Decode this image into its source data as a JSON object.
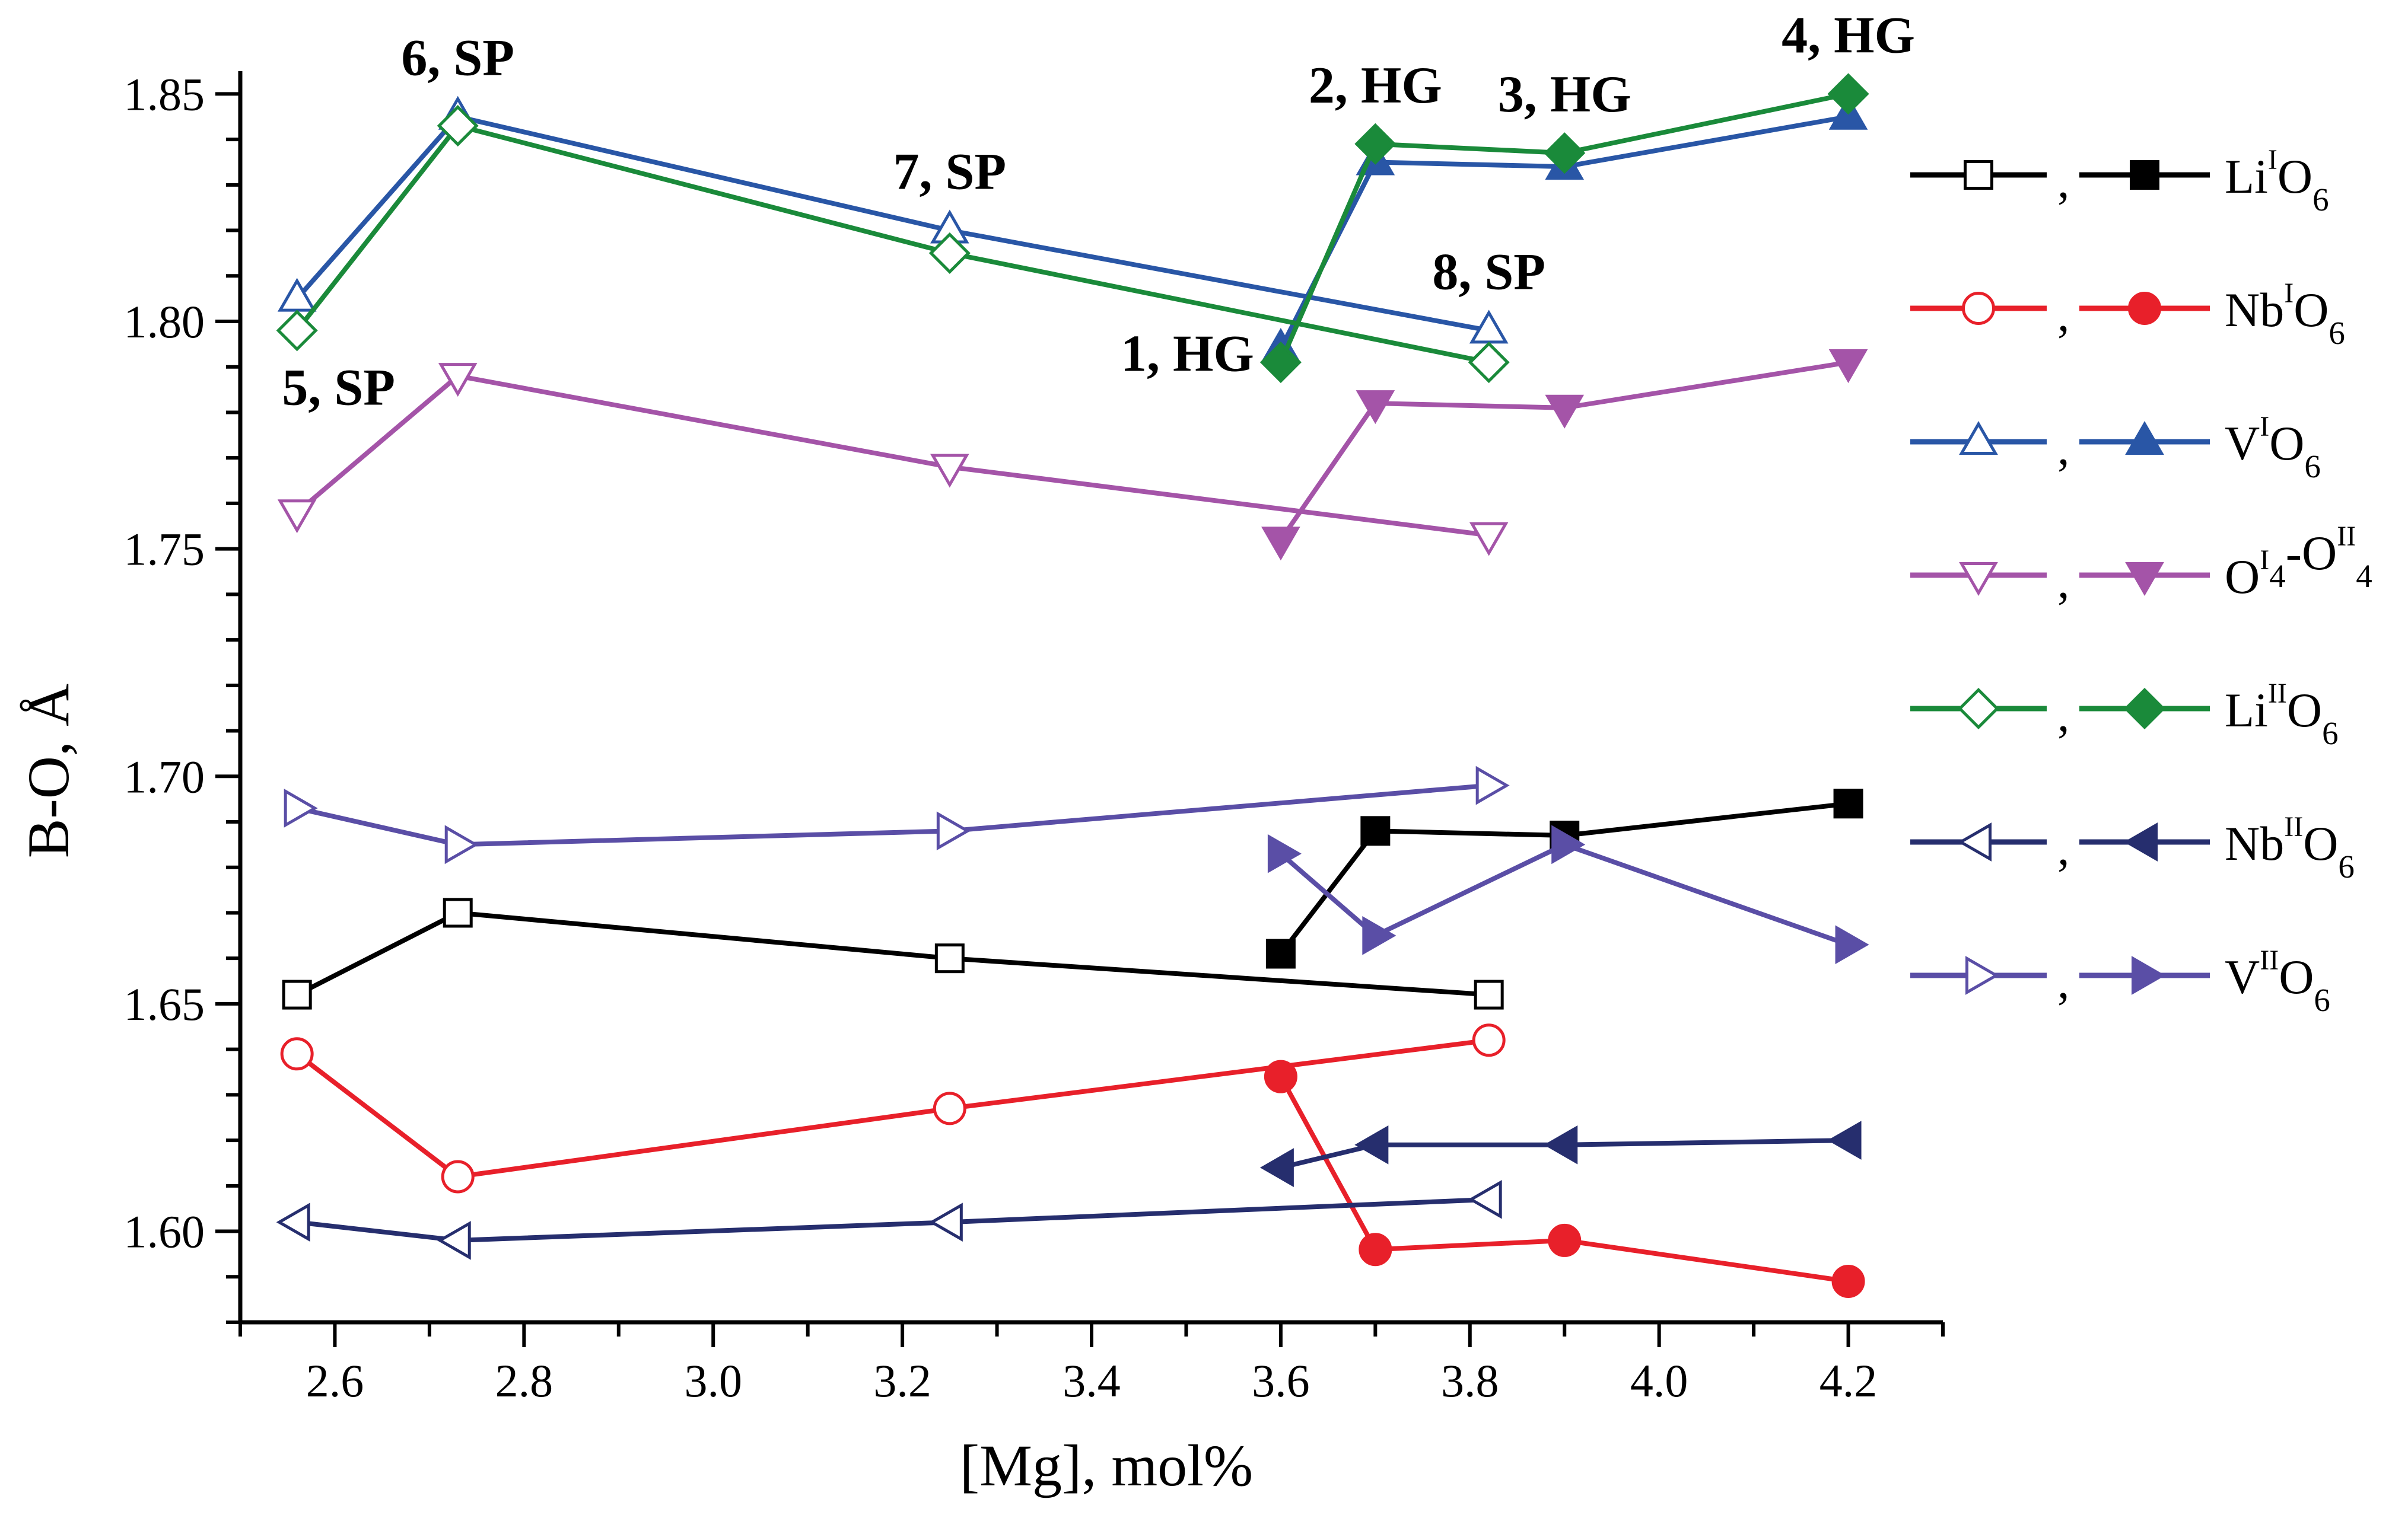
{
  "chart_data": {
    "type": "line",
    "title": "",
    "xlabel": "[Mg], mol%",
    "ylabel": "B-O, Å",
    "xlim": [
      2.5,
      4.3
    ],
    "ylim": [
      1.58,
      1.855
    ],
    "x_ticks": [
      2.6,
      2.8,
      3.0,
      3.2,
      3.4,
      3.6,
      3.8,
      4.0,
      4.2
    ],
    "x_tick_labels": [
      "2.6",
      "2.8",
      "3.0",
      "3.2",
      "3.4",
      "3.6",
      "3.8",
      "4.0",
      "4.2"
    ],
    "y_ticks": [
      1.6,
      1.65,
      1.7,
      1.75,
      1.8,
      1.85
    ],
    "y_tick_labels": [
      "1.60",
      "1.65",
      "1.70",
      "1.75",
      "1.80",
      "1.85"
    ],
    "legend_position": "right",
    "series": [
      {
        "name": "LiIO6 (SP)",
        "color": "#000000",
        "marker": "square",
        "filled": false,
        "x": [
          2.56,
          2.73,
          3.25,
          3.82
        ],
        "y": [
          1.652,
          1.67,
          1.66,
          1.652
        ]
      },
      {
        "name": "LiIO6 (HG)",
        "color": "#000000",
        "marker": "square",
        "filled": true,
        "x": [
          3.6,
          3.7,
          3.9,
          4.2
        ],
        "y": [
          1.661,
          1.688,
          1.687,
          1.694
        ]
      },
      {
        "name": "NbIO6 (SP)",
        "color": "#e8202a",
        "marker": "circle",
        "filled": false,
        "x": [
          2.56,
          2.73,
          3.25,
          3.82
        ],
        "y": [
          1.639,
          1.612,
          1.627,
          1.642
        ]
      },
      {
        "name": "NbIO6 (HG)",
        "color": "#e8202a",
        "marker": "circle",
        "filled": true,
        "x": [
          3.6,
          3.7,
          3.9,
          4.2
        ],
        "y": [
          1.634,
          1.596,
          1.598,
          1.589
        ]
      },
      {
        "name": "VIO6 (SP)",
        "color": "#2956a6",
        "marker": "triangle-up",
        "filled": false,
        "x": [
          2.56,
          2.73,
          3.25,
          3.82
        ],
        "y": [
          1.805,
          1.845,
          1.82,
          1.798
        ]
      },
      {
        "name": "VIO6 (HG)",
        "color": "#2956a6",
        "marker": "triangle-up",
        "filled": true,
        "x": [
          3.6,
          3.7,
          3.9,
          4.2
        ],
        "y": [
          1.794,
          1.835,
          1.834,
          1.845
        ]
      },
      {
        "name": "OI4-OII4 (SP)",
        "color": "#a454a8",
        "marker": "triangle-down",
        "filled": false,
        "x": [
          2.56,
          2.73,
          3.25,
          3.82
        ],
        "y": [
          1.758,
          1.788,
          1.768,
          1.753
        ]
      },
      {
        "name": "OI4-OII4 (HG)",
        "color": "#a454a8",
        "marker": "triangle-down",
        "filled": true,
        "x": [
          3.6,
          3.7,
          3.9,
          4.2
        ],
        "y": [
          1.752,
          1.782,
          1.781,
          1.791
        ]
      },
      {
        "name": "LiIIO6 (SP)",
        "color": "#1a8a3a",
        "marker": "diamond",
        "filled": false,
        "x": [
          2.56,
          2.73,
          3.25,
          3.82
        ],
        "y": [
          1.798,
          1.843,
          1.815,
          1.791
        ]
      },
      {
        "name": "LiIIO6 (HG)",
        "color": "#1a8a3a",
        "marker": "diamond",
        "filled": true,
        "x": [
          3.6,
          3.7,
          3.9,
          4.2
        ],
        "y": [
          1.791,
          1.839,
          1.837,
          1.85
        ]
      },
      {
        "name": "NbIIO6 (SP)",
        "color": "#262e6e",
        "marker": "triangle-left",
        "filled": false,
        "x": [
          2.56,
          2.73,
          3.25,
          3.82
        ],
        "y": [
          1.602,
          1.598,
          1.602,
          1.607
        ]
      },
      {
        "name": "NbIIO6 (HG)",
        "color": "#262e6e",
        "marker": "triangle-left",
        "filled": true,
        "x": [
          3.6,
          3.7,
          3.9,
          4.2
        ],
        "y": [
          1.614,
          1.619,
          1.619,
          1.62
        ]
      },
      {
        "name": "VIIO6 (SP)",
        "color": "#5a4ea6",
        "marker": "triangle-right",
        "filled": false,
        "x": [
          2.56,
          2.73,
          3.25,
          3.82
        ],
        "y": [
          1.693,
          1.685,
          1.688,
          1.698
        ]
      },
      {
        "name": "VIIO6 (HG)",
        "color": "#5a4ea6",
        "marker": "triangle-right",
        "filled": true,
        "x": [
          3.6,
          3.7,
          3.9,
          4.2
        ],
        "y": [
          1.683,
          1.665,
          1.685,
          1.663
        ]
      }
    ],
    "annotations": [
      {
        "text": "1, HG",
        "x": 3.6,
        "y": 1.793,
        "anchor": "end"
      },
      {
        "text": "2, HG",
        "x": 3.7,
        "y": 1.839,
        "anchor": "middle-above"
      },
      {
        "text": "3, HG",
        "x": 3.9,
        "y": 1.837,
        "anchor": "middle-above"
      },
      {
        "text": "4, HG",
        "x": 4.2,
        "y": 1.85,
        "anchor": "middle-above"
      },
      {
        "text": "5, SP",
        "x": 2.56,
        "y": 1.798,
        "anchor": "below"
      },
      {
        "text": "6, SP",
        "x": 2.73,
        "y": 1.845,
        "anchor": "middle-above"
      },
      {
        "text": "7, SP",
        "x": 3.25,
        "y": 1.82,
        "anchor": "middle-above"
      },
      {
        "text": "8, SP",
        "x": 3.82,
        "y": 1.798,
        "anchor": "middle-above"
      }
    ],
    "legend": [
      {
        "base": "Li",
        "sup": "I",
        "mid": "O",
        "sub": "6",
        "tail": "",
        "color": "#000000",
        "marker": "square"
      },
      {
        "base": "Nb",
        "sup": "I",
        "mid": "O",
        "sub": "6",
        "tail": "",
        "color": "#e8202a",
        "marker": "circle"
      },
      {
        "base": "V",
        "sup": "I",
        "mid": "O",
        "sub": "6",
        "tail": "",
        "color": "#2956a6",
        "marker": "triangle-up"
      },
      {
        "base": "O",
        "sup": "I",
        "mid": "",
        "sub": "4",
        "tail": "-O",
        "tail_sup": "II",
        "tail_sub": "4",
        "color": "#a454a8",
        "marker": "triangle-down"
      },
      {
        "base": "Li",
        "sup": "II",
        "mid": "O",
        "sub": "6",
        "tail": "",
        "color": "#1a8a3a",
        "marker": "diamond"
      },
      {
        "base": "Nb",
        "sup": "II",
        "mid": "O",
        "sub": "6",
        "tail": "",
        "color": "#262e6e",
        "marker": "triangle-left"
      },
      {
        "base": "V",
        "sup": "II",
        "mid": "O",
        "sub": "6",
        "tail": "",
        "color": "#5a4ea6",
        "marker": "triangle-right"
      }
    ],
    "legend_separator": ","
  }
}
